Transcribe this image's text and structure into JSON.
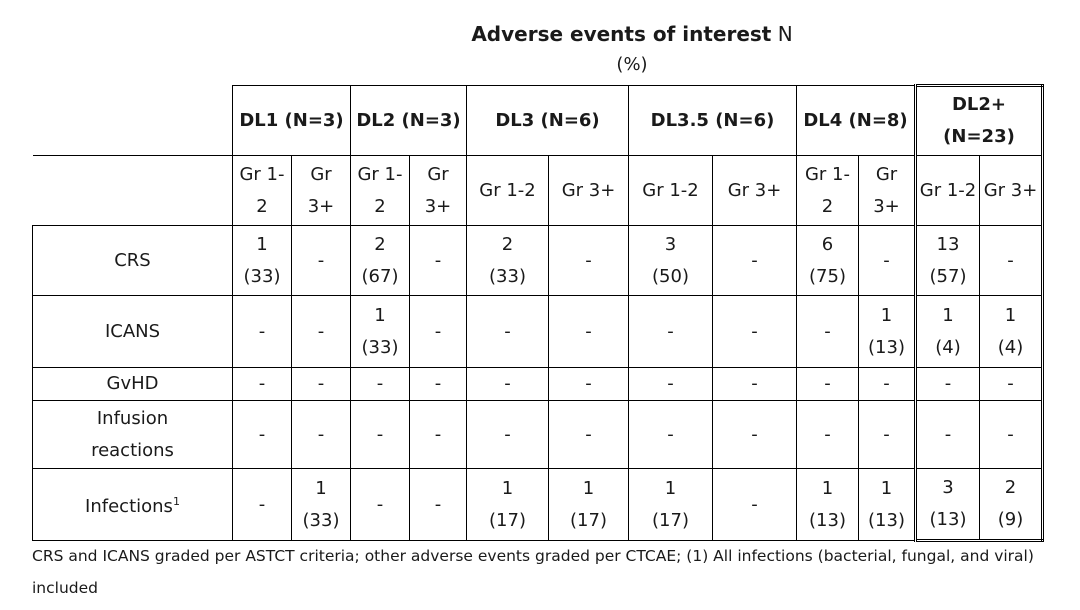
{
  "title": {
    "bold": "Adverse events of interest",
    "rest": " N",
    "line2": "(%)"
  },
  "dose_levels": [
    {
      "label": "DL1 (N=3)"
    },
    {
      "label": "DL2 (N=3)"
    },
    {
      "label": "DL3 (N=6)"
    },
    {
      "label": "DL3.5 (N=6)"
    },
    {
      "label": "DL4 (N=8)"
    },
    {
      "label_line1": "DL2+",
      "label_line2": "(N=23)"
    }
  ],
  "grades": [
    [
      "Gr 1-",
      "2"
    ],
    [
      "Gr",
      "3+"
    ],
    [
      "Gr 1-",
      "2"
    ],
    [
      "Gr",
      "3+"
    ],
    [
      "Gr 1-2"
    ],
    [
      "Gr 3+"
    ],
    [
      "Gr 1-2"
    ],
    [
      "Gr 3+"
    ],
    [
      "Gr 1-",
      "2"
    ],
    [
      "Gr",
      "3+"
    ],
    [
      "Gr 1-2"
    ],
    [
      "Gr 3+"
    ]
  ],
  "rows": [
    {
      "label": "CRS",
      "cells": [
        [
          "1",
          "(33)"
        ],
        [
          "-"
        ],
        [
          "2",
          "(67)"
        ],
        [
          "-"
        ],
        [
          "2",
          "(33)"
        ],
        [
          "-"
        ],
        [
          "3",
          "(50)"
        ],
        [
          "-"
        ],
        [
          "6",
          "(75)"
        ],
        [
          "-"
        ],
        [
          "13",
          "(57)"
        ],
        [
          "-"
        ]
      ]
    },
    {
      "label": "ICANS",
      "cells": [
        [
          "-"
        ],
        [
          "-"
        ],
        [
          "1",
          "(33)"
        ],
        [
          "-"
        ],
        [
          "-"
        ],
        [
          "-"
        ],
        [
          "-"
        ],
        [
          "-"
        ],
        [
          "-"
        ],
        [
          "1",
          "(13)"
        ],
        [
          "1",
          "(4)"
        ],
        [
          "1",
          "(4)"
        ]
      ]
    },
    {
      "label": "GvHD",
      "cells": [
        [
          "-"
        ],
        [
          "-"
        ],
        [
          "-"
        ],
        [
          "-"
        ],
        [
          "-"
        ],
        [
          "-"
        ],
        [
          "-"
        ],
        [
          "-"
        ],
        [
          "-"
        ],
        [
          "-"
        ],
        [
          "-"
        ],
        [
          "-"
        ]
      ]
    },
    {
      "label_line1": "Infusion",
      "label_line2": "reactions",
      "cells": [
        [
          "-"
        ],
        [
          "-"
        ],
        [
          "-"
        ],
        [
          "-"
        ],
        [
          "-"
        ],
        [
          "-"
        ],
        [
          "-"
        ],
        [
          "-"
        ],
        [
          "-"
        ],
        [
          "-"
        ],
        [
          "-"
        ],
        [
          "-"
        ]
      ]
    },
    {
      "label": "Infections",
      "label_sup": "1",
      "cells": [
        [
          "-"
        ],
        [
          "1",
          "(33)"
        ],
        [
          "-"
        ],
        [
          "-"
        ],
        [
          "1",
          "(17)"
        ],
        [
          "1",
          "(17)"
        ],
        [
          "1",
          "(17)"
        ],
        [
          "-"
        ],
        [
          "1",
          "(13)"
        ],
        [
          "1",
          "(13)"
        ],
        [
          "3",
          "(13)"
        ],
        [
          "2",
          "(9)"
        ]
      ]
    }
  ],
  "footnote": "CRS and ICANS graded per ASTCT criteria; other adverse events graded per CTCAE; (1) All infections (bacterial, fungal, and viral) included"
}
